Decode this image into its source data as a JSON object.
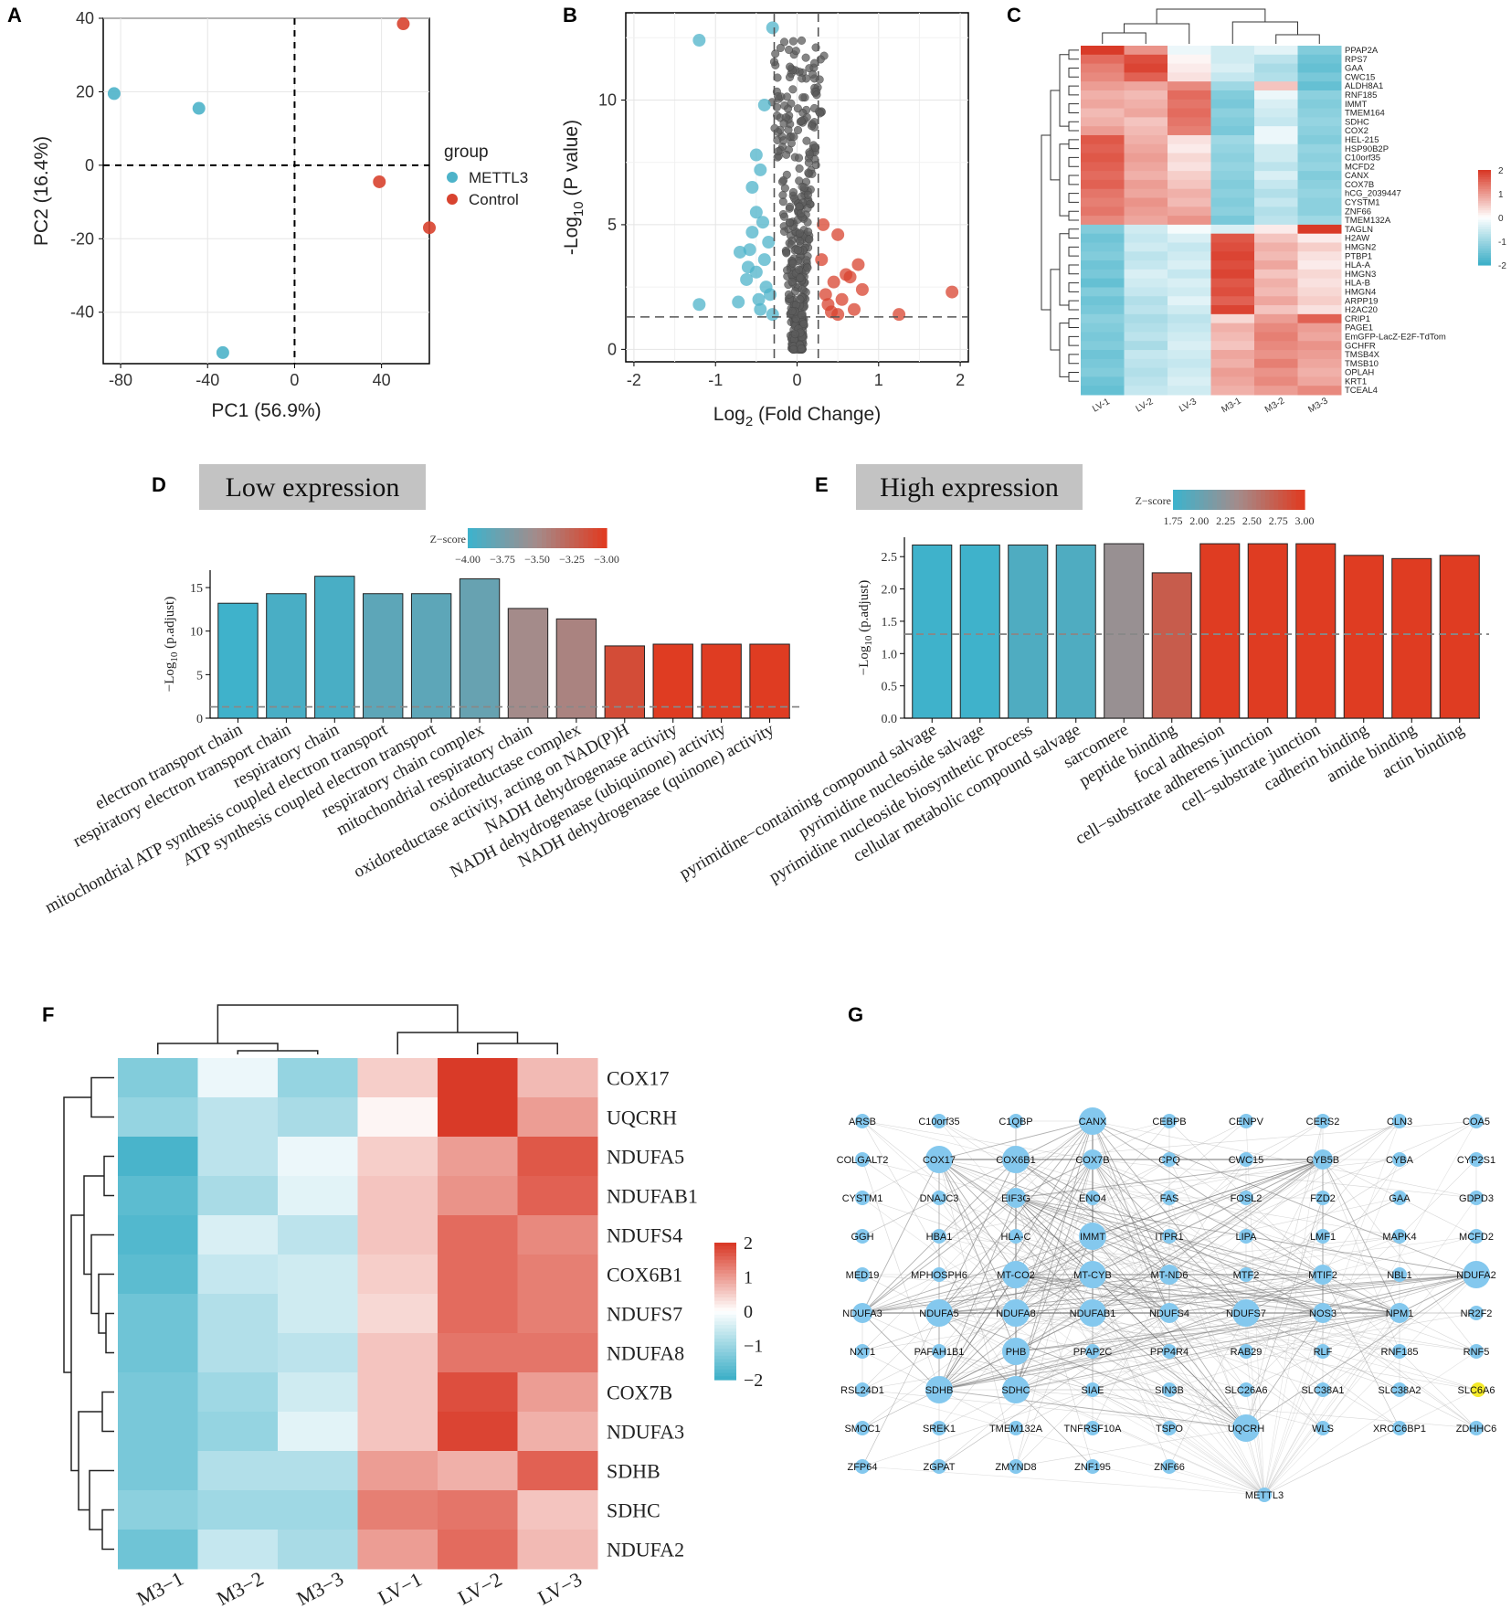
{
  "colors": {
    "teal": "#4db3c9",
    "red": "#d8432f",
    "grey": "#5a5a5a",
    "node": "#84c8ee",
    "node_highlight": "#f4ea2a",
    "title_bg": "#c3c3c3"
  },
  "panels": {
    "A": "A",
    "B": "B",
    "C": "C",
    "D": "D",
    "E": "E",
    "F": "F",
    "G": "G"
  },
  "chart_data": [
    {
      "panel": "A",
      "type": "scatter",
      "xlabel": "PC1 (56.9%)",
      "ylabel": "PC2 (16.4%)",
      "xticks": [
        -80,
        -40,
        0,
        40
      ],
      "yticks": [
        40,
        20,
        0,
        -20,
        -40
      ],
      "xlim": [
        -88,
        62
      ],
      "ylim": [
        -54,
        40
      ],
      "legend_title": "group",
      "legend": [
        {
          "name": "METTL3",
          "color": "#4db3c9"
        },
        {
          "name": "Control",
          "color": "#d8432f"
        }
      ],
      "points": [
        {
          "group": "METTL3",
          "x": -83,
          "y": 19.5
        },
        {
          "group": "METTL3",
          "x": -44,
          "y": 15.5
        },
        {
          "group": "METTL3",
          "x": -33,
          "y": -51
        },
        {
          "group": "Control",
          "x": 50,
          "y": 38.5
        },
        {
          "group": "Control",
          "x": 39,
          "y": -4.5
        },
        {
          "group": "Control",
          "x": 62,
          "y": -17
        }
      ]
    },
    {
      "panel": "B",
      "type": "scatter",
      "xlabel_main": "Log",
      "xlabel_sub": "2",
      "xlabel_rest": " (Fold Change)",
      "ylabel_main": "-Log",
      "ylabel_sub": "10",
      "ylabel_rest": " (P value)",
      "xticks": [
        -2,
        -1,
        0,
        1,
        2
      ],
      "yticks": [
        0,
        5,
        10
      ],
      "xlim": [
        -2.1,
        2.1
      ],
      "ylim": [
        -0.5,
        13.5
      ],
      "threshold_x": [
        -0.28,
        0.26
      ],
      "threshold_y": 1.3,
      "highlight_points": [
        {
          "x": -1.2,
          "y": 12.4,
          "c": "teal"
        },
        {
          "x": -0.3,
          "y": 12.9,
          "c": "teal"
        },
        {
          "x": -1.2,
          "y": 1.8,
          "c": "teal"
        },
        {
          "x": -0.4,
          "y": 9.8,
          "c": "teal"
        },
        {
          "x": -0.5,
          "y": 7.8,
          "c": "teal"
        },
        {
          "x": -0.45,
          "y": 7.2,
          "c": "teal"
        },
        {
          "x": -0.55,
          "y": 6.5,
          "c": "teal"
        },
        {
          "x": -0.5,
          "y": 5.5,
          "c": "teal"
        },
        {
          "x": -0.42,
          "y": 5.1,
          "c": "teal"
        },
        {
          "x": -0.55,
          "y": 4.7,
          "c": "teal"
        },
        {
          "x": -0.7,
          "y": 3.9,
          "c": "teal"
        },
        {
          "x": -0.4,
          "y": 3.6,
          "c": "teal"
        },
        {
          "x": -0.5,
          "y": 3.1,
          "c": "teal"
        },
        {
          "x": -0.62,
          "y": 2.8,
          "c": "teal"
        },
        {
          "x": -0.38,
          "y": 2.5,
          "c": "teal"
        },
        {
          "x": -0.72,
          "y": 1.9,
          "c": "teal"
        },
        {
          "x": -0.45,
          "y": 1.6,
          "c": "teal"
        },
        {
          "x": -0.33,
          "y": 2.2,
          "c": "teal"
        },
        {
          "x": -0.6,
          "y": 3.3,
          "c": "teal"
        },
        {
          "x": -0.35,
          "y": 4.3,
          "c": "teal"
        },
        {
          "x": -0.47,
          "y": 2.0,
          "c": "teal"
        },
        {
          "x": -0.3,
          "y": 1.4,
          "c": "teal"
        },
        {
          "x": -0.58,
          "y": 4.0,
          "c": "teal"
        },
        {
          "x": 1.9,
          "y": 2.3,
          "c": "red"
        },
        {
          "x": 1.25,
          "y": 1.4,
          "c": "red"
        },
        {
          "x": 0.32,
          "y": 5.0,
          "c": "red"
        },
        {
          "x": 0.5,
          "y": 4.6,
          "c": "red"
        },
        {
          "x": 0.75,
          "y": 3.4,
          "c": "red"
        },
        {
          "x": 0.6,
          "y": 3.0,
          "c": "red"
        },
        {
          "x": 0.45,
          "y": 2.7,
          "c": "red"
        },
        {
          "x": 0.8,
          "y": 2.4,
          "c": "red"
        },
        {
          "x": 0.35,
          "y": 2.2,
          "c": "red"
        },
        {
          "x": 0.55,
          "y": 2.0,
          "c": "red"
        },
        {
          "x": 0.38,
          "y": 1.8,
          "c": "red"
        },
        {
          "x": 0.7,
          "y": 1.6,
          "c": "red"
        },
        {
          "x": 0.42,
          "y": 1.5,
          "c": "red"
        },
        {
          "x": 0.3,
          "y": 3.6,
          "c": "red"
        },
        {
          "x": 0.65,
          "y": 2.9,
          "c": "red"
        },
        {
          "x": 0.5,
          "y": 1.4,
          "c": "red"
        }
      ]
    },
    {
      "panel": "C",
      "type": "heatmap",
      "columns": [
        "LV-1",
        "LV-2",
        "LV-3",
        "M3-1",
        "M3-2",
        "M3-3"
      ],
      "rows": [
        "PPAP2A",
        "RPS7",
        "GAA",
        "CWC15",
        "ALDH8A1",
        "RNF185",
        "IMMT",
        "TMEM164",
        "SDHC",
        "COX2",
        "HEL-215",
        "HSP90B2P",
        "C10orf35",
        "MCFD2",
        "CANX",
        "COX7B",
        "hCG_2039447",
        "CYSTM1",
        "ZNF66",
        "TMEM132A",
        "TAGLN",
        "H2AW",
        "HMGN2",
        "PTBP1",
        "HLA-A",
        "HMGN3",
        "HLA-B",
        "HMGN4",
        "ARPP19",
        "H2AC20",
        "CRIP1",
        "PAGE1",
        "EmGFP-LacZ-E2F-TdTom",
        "GCHFR",
        "TMSB4X",
        "TMSB10",
        "OPLAH",
        "KRT1",
        "TCEAL4"
      ],
      "values": [
        [
          2,
          1.1,
          -0.2,
          -0.5,
          -0.3,
          -1.3
        ],
        [
          1.5,
          1.8,
          0.1,
          -0.5,
          -0.7,
          -1.5
        ],
        [
          1.3,
          1.9,
          0.2,
          -0.4,
          -0.9,
          -1.6
        ],
        [
          1.2,
          1.6,
          0.3,
          -0.6,
          -0.8,
          -1.4
        ],
        [
          1.0,
          0.9,
          1.2,
          -1.0,
          0.6,
          -1.6
        ],
        [
          0.8,
          0.7,
          1.5,
          -1.3,
          -0.2,
          -1.2
        ],
        [
          0.9,
          0.8,
          1.4,
          -1.4,
          -0.4,
          -1.3
        ],
        [
          0.7,
          0.9,
          1.5,
          -1.2,
          -0.5,
          -1.2
        ],
        [
          0.8,
          0.6,
          1.4,
          -1.3,
          -0.6,
          -1.1
        ],
        [
          1.0,
          0.7,
          1.3,
          -1.4,
          -0.2,
          -1.2
        ],
        [
          1.7,
          0.8,
          0.3,
          -1.0,
          -0.2,
          -1.3
        ],
        [
          1.6,
          0.9,
          0.2,
          -1.1,
          -0.5,
          -1.1
        ],
        [
          1.7,
          1.0,
          0.4,
          -1.2,
          -0.5,
          -1.2
        ],
        [
          1.6,
          0.9,
          0.3,
          -1.1,
          -0.7,
          -1.1
        ],
        [
          1.5,
          0.8,
          0.5,
          -1.2,
          -0.4,
          -1.3
        ],
        [
          1.6,
          1.0,
          0.6,
          -1.3,
          -0.6,
          -1.2
        ],
        [
          1.4,
          0.9,
          0.8,
          -1.2,
          -0.8,
          -1.1
        ],
        [
          1.3,
          1.1,
          0.7,
          -1.3,
          -0.6,
          -1.2
        ],
        [
          1.4,
          1.0,
          0.9,
          -1.2,
          -0.8,
          -1.2
        ],
        [
          1.2,
          0.9,
          1.1,
          -1.4,
          -0.7,
          -1.0
        ],
        [
          -1.3,
          -0.5,
          -0.1,
          -0.4,
          0.2,
          2.0
        ],
        [
          -1.5,
          -0.6,
          -0.4,
          1.7,
          0.6,
          0.2
        ],
        [
          -1.4,
          -0.5,
          -0.6,
          1.8,
          0.8,
          0.5
        ],
        [
          -1.3,
          -0.7,
          -0.5,
          1.9,
          0.7,
          0.3
        ],
        [
          -1.5,
          -0.6,
          -0.4,
          1.8,
          0.9,
          0.2
        ],
        [
          -1.4,
          -0.4,
          -0.6,
          1.9,
          0.6,
          0.4
        ],
        [
          -1.6,
          -0.5,
          -0.4,
          1.7,
          0.8,
          0.3
        ],
        [
          -1.3,
          -0.6,
          -0.5,
          1.8,
          0.7,
          0.4
        ],
        [
          -1.5,
          -0.8,
          -0.3,
          1.6,
          0.9,
          0.5
        ],
        [
          -1.4,
          -0.7,
          -0.5,
          1.9,
          0.6,
          0.3
        ],
        [
          -1.2,
          -0.9,
          -0.7,
          0.4,
          1.0,
          1.6
        ],
        [
          -1.3,
          -0.8,
          -0.6,
          0.8,
          1.2,
          1.0
        ],
        [
          -1.4,
          -0.7,
          -0.5,
          0.7,
          1.3,
          0.9
        ],
        [
          -1.3,
          -0.9,
          -0.4,
          0.6,
          1.2,
          1.1
        ],
        [
          -1.5,
          -0.6,
          -0.5,
          0.9,
          1.1,
          1.0
        ],
        [
          -1.4,
          -0.7,
          -0.6,
          0.8,
          1.3,
          0.9
        ],
        [
          -1.3,
          -0.8,
          -0.5,
          1.0,
          1.1,
          0.8
        ],
        [
          -1.5,
          -0.7,
          -0.4,
          0.9,
          1.2,
          0.9
        ],
        [
          -1.6,
          -0.6,
          -0.5,
          0.8,
          1.0,
          1.2
        ]
      ],
      "scale_ticks": [
        2,
        1,
        0,
        -1,
        -2
      ]
    },
    {
      "panel": "D",
      "type": "bar",
      "title": "Low expression",
      "ylabel_main": "−Log",
      "ylabel_sub": "10",
      "ylabel_rest": " (p.adjust)",
      "ylim": [
        0,
        17
      ],
      "yticks": [
        0,
        5,
        10,
        15
      ],
      "threshold": 1.3,
      "legend_title": "Z−score",
      "legend_ticks": [
        "−4.00",
        "−3.75",
        "−3.50",
        "−3.25",
        "−3.00"
      ],
      "categories": [
        "electron transport chain",
        "respiratory electron transport chain",
        "respiratory chain",
        "mitochondrial ATP synthesis coupled electron transport",
        "ATP synthesis coupled electron transport",
        "respiratory chain complex",
        "mitochondrial respiratory chain",
        "oxidoreductase complex",
        "oxidoreductase activity, acting on NAD(P)H",
        "NADH dehydrogenase activity",
        "NADH dehydrogenase (ubiquinone) activity",
        "NADH dehydrogenase (quinone) activity"
      ],
      "values": [
        13.2,
        14.3,
        16.3,
        14.3,
        14.3,
        16.0,
        12.6,
        11.4,
        8.3,
        8.5,
        8.5,
        8.5
      ],
      "zscores": [
        -4.0,
        -3.95,
        -3.95,
        -3.85,
        -3.85,
        -3.8,
        -3.5,
        -3.45,
        -3.1,
        -3.0,
        -3.0,
        -3.0
      ]
    },
    {
      "panel": "E",
      "type": "bar",
      "title": "High expression",
      "ylabel_main": "−Log",
      "ylabel_sub": "10",
      "ylabel_rest": " (p.adjust)",
      "ylim": [
        0,
        2.8
      ],
      "yticks": [
        0.0,
        0.5,
        1.0,
        1.5,
        2.0,
        2.5
      ],
      "threshold": 1.3,
      "legend_title": "Z−score",
      "legend_ticks": [
        "1.75",
        "2.00",
        "2.25",
        "2.50",
        "2.75",
        "3.00"
      ],
      "categories": [
        "pyrimidine−containing compound salvage",
        "pyrimidine nucleoside salvage",
        "pyrimidine nucleoside biosynthetic process",
        "cellular metabolic compound salvage",
        "sarcomere",
        "peptide binding",
        "focal adhesion",
        "cell−substrate adherens junction",
        "cell−substrate junction",
        "cadherin binding",
        "amide binding",
        "actin binding"
      ],
      "values": [
        2.68,
        2.68,
        2.68,
        2.68,
        2.7,
        2.25,
        2.7,
        2.7,
        2.7,
        2.52,
        2.47,
        2.52
      ],
      "zscores": [
        1.75,
        1.75,
        1.85,
        1.85,
        2.3,
        2.75,
        3.0,
        3.0,
        3.0,
        3.0,
        3.0,
        3.0
      ]
    },
    {
      "panel": "F",
      "type": "heatmap",
      "columns": [
        "M3−1",
        "M3−2",
        "M3−3",
        "LV−1",
        "LV−2",
        "LV−3"
      ],
      "rows": [
        "COX17",
        "UQCRH",
        "NDUFA5",
        "NDUFAB1",
        "NDUFS4",
        "COX6B1",
        "NDUFS7",
        "NDUFA8",
        "COX7B",
        "NDUFA3",
        "SDHB",
        "SDHC",
        "NDUFA2"
      ],
      "values": [
        [
          -1.3,
          -0.2,
          -1.1,
          0.5,
          2.0,
          0.7
        ],
        [
          -1.1,
          -0.7,
          -0.9,
          0.1,
          2.0,
          1.0
        ],
        [
          -1.9,
          -0.7,
          -0.2,
          0.5,
          1.0,
          1.7
        ],
        [
          -1.7,
          -0.9,
          -0.3,
          0.6,
          1.1,
          1.6
        ],
        [
          -1.8,
          -0.4,
          -0.7,
          0.6,
          1.5,
          1.2
        ],
        [
          -1.7,
          -0.6,
          -0.5,
          0.5,
          1.5,
          1.3
        ],
        [
          -1.5,
          -0.8,
          -0.5,
          0.4,
          1.5,
          1.3
        ],
        [
          -1.5,
          -0.8,
          -0.7,
          0.6,
          1.4,
          1.4
        ],
        [
          -1.4,
          -1.0,
          -0.5,
          0.6,
          1.8,
          1.0
        ],
        [
          -1.4,
          -1.1,
          -0.3,
          0.6,
          1.9,
          0.8
        ],
        [
          -1.4,
          -0.8,
          -0.8,
          1.0,
          0.8,
          1.6
        ],
        [
          -1.2,
          -1.0,
          -1.0,
          1.3,
          1.4,
          0.6
        ],
        [
          -1.5,
          -0.6,
          -0.9,
          1.0,
          1.5,
          0.7
        ]
      ],
      "scale_ticks": [
        "2",
        "1",
        "0",
        "−1",
        "−2"
      ]
    },
    {
      "panel": "G",
      "type": "network",
      "rows": [
        [
          "ARSB",
          "C10orf35",
          "C1QBP",
          "CANX",
          "CEBPB",
          "CENPV",
          "CERS2",
          "CLN3",
          "COA5"
        ],
        [
          "COLGALT2",
          "COX17",
          "COX6B1",
          "COX7B",
          "CPQ",
          "CWC15",
          "CYB5B",
          "CYBA",
          "CYP2S1"
        ],
        [
          "CYSTM1",
          "DNAJC3",
          "EIF3G",
          "ENO4",
          "FAS",
          "FOSL2",
          "FZD2",
          "GAA",
          "GDPD3"
        ],
        [
          "GGH",
          "HBA1",
          "HLA-C",
          "IMMT",
          "ITPR1",
          "LIPA",
          "LMF1",
          "MAPK4",
          "MCFD2"
        ],
        [
          "MED19",
          "MPHOSPH6",
          "MT-CO2",
          "MT-CYB",
          "MT-ND6",
          "MTF2",
          "MTIF2",
          "NBL1",
          "NDUFA2"
        ],
        [
          "NDUFA3",
          "NDUFA5",
          "NDUFA8",
          "NDUFAB1",
          "NDUFS4",
          "NDUFS7",
          "NOS3",
          "NPM1",
          "NR2F2"
        ],
        [
          "NXT1",
          "PAFAH1B1",
          "PHB",
          "PPAP2C",
          "PPP4R4",
          "RAB29",
          "RLF",
          "RNF185",
          "RNF5"
        ],
        [
          "RSL24D1",
          "SDHB",
          "SDHC",
          "SIAE",
          "SIN3B",
          "SLC26A6",
          "SLC38A1",
          "SLC38A2",
          "SLC6A6"
        ],
        [
          "SMOC1",
          "SREK1",
          "TMEM132A",
          "TNFRSF10A",
          "TSPO",
          "UQCRH",
          "WLS",
          "XRCC6BP1",
          "ZDHHC6"
        ],
        [
          "ZFP64",
          "ZGPAT",
          "ZMYND8",
          "ZNF195",
          "ZNF66"
        ]
      ],
      "extra_node": "METTL3",
      "large_nodes": [
        "CANX",
        "COX17",
        "COX6B1",
        "COX7B",
        "IMMT",
        "MT-CO2",
        "MT-CYB",
        "NDUFA2",
        "NDUFA5",
        "NDUFA8",
        "NDUFAB1",
        "NDUFS7",
        "PHB",
        "SDHB",
        "SDHC",
        "UQCRH",
        "CYB5B",
        "MTIF2",
        "NDUFS4",
        "MT-ND6",
        "EIF3G",
        "NOS3",
        "NPM1",
        "NDUFA3"
      ],
      "highlight_node": "SLC6A6"
    }
  ]
}
